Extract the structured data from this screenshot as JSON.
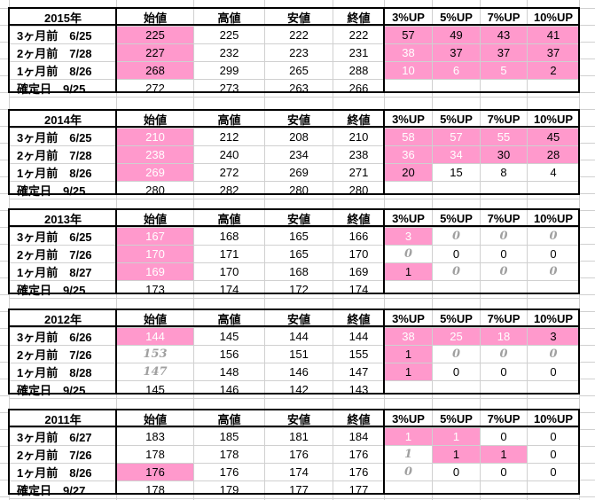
{
  "columns": [
    "始値",
    "高値",
    "安値",
    "終値",
    "3%UP",
    "5%UP",
    "7%UP",
    "10%UP"
  ],
  "colors": {
    "highlight": "#ff99cc",
    "border": "#000000",
    "grid": "#d0d0d0"
  },
  "blocks": [
    {
      "year": "2015年",
      "rows": [
        {
          "label": "3ヶ月前　6/25",
          "open": "225",
          "high": "225",
          "low": "222",
          "close": "222",
          "up3": "57",
          "up5": "49",
          "up7": "43",
          "up10": "41"
        },
        {
          "label": "2ヶ月前　7/28",
          "open": "227",
          "high": "232",
          "low": "223",
          "close": "231",
          "up3": "38",
          "up5": "37",
          "up7": "37",
          "up10": "37"
        },
        {
          "label": "1ヶ月前　8/26",
          "open": "268",
          "high": "299",
          "low": "265",
          "close": "288",
          "up3": "10",
          "up5": "6",
          "up7": "5",
          "up10": "2"
        },
        {
          "label": "確定日　9/25",
          "open": "272",
          "high": "273",
          "low": "263",
          "close": "266",
          "up3": "",
          "up5": "",
          "up7": "",
          "up10": ""
        }
      ]
    },
    {
      "year": "2014年",
      "rows": [
        {
          "label": "3ヶ月前　6/25",
          "open": "210",
          "high": "212",
          "low": "208",
          "close": "210",
          "up3": "58",
          "up5": "57",
          "up7": "55",
          "up10": "45"
        },
        {
          "label": "2ヶ月前　7/28",
          "open": "238",
          "high": "240",
          "low": "234",
          "close": "238",
          "up3": "36",
          "up5": "34",
          "up7": "30",
          "up10": "28"
        },
        {
          "label": "1ヶ月前　8/26",
          "open": "269",
          "high": "272",
          "low": "269",
          "close": "271",
          "up3": "20",
          "up5": "15",
          "up7": "8",
          "up10": "4"
        },
        {
          "label": "確定日　9/25",
          "open": "280",
          "high": "282",
          "low": "280",
          "close": "280",
          "up3": "",
          "up5": "",
          "up7": "",
          "up10": ""
        }
      ]
    },
    {
      "year": "2013年",
      "rows": [
        {
          "label": "3ヶ月前　6/25",
          "open": "167",
          "high": "168",
          "low": "165",
          "close": "166",
          "up3": "3",
          "up5": "0",
          "up7": "0",
          "up10": "0"
        },
        {
          "label": "2ヶ月前　7/26",
          "open": "170",
          "high": "171",
          "low": "165",
          "close": "170",
          "up3": "0",
          "up5": "0",
          "up7": "0",
          "up10": "0"
        },
        {
          "label": "1ヶ月前　8/27",
          "open": "169",
          "high": "170",
          "low": "168",
          "close": "169",
          "up3": "1",
          "up5": "0",
          "up7": "0",
          "up10": "0"
        },
        {
          "label": "確定日　9/25",
          "open": "173",
          "high": "174",
          "low": "172",
          "close": "174",
          "up3": "",
          "up5": "",
          "up7": "",
          "up10": ""
        }
      ]
    },
    {
      "year": "2012年",
      "rows": [
        {
          "label": "3ヶ月前　6/26",
          "open": "144",
          "high": "145",
          "low": "144",
          "close": "144",
          "up3": "38",
          "up5": "25",
          "up7": "18",
          "up10": "3"
        },
        {
          "label": "2ヶ月前　7/26",
          "open": "153",
          "high": "156",
          "low": "151",
          "close": "155",
          "up3": "1",
          "up5": "0",
          "up7": "0",
          "up10": "0"
        },
        {
          "label": "1ヶ月前　8/28",
          "open": "147",
          "high": "148",
          "low": "146",
          "close": "147",
          "up3": "1",
          "up5": "0",
          "up7": "0",
          "up10": "0"
        },
        {
          "label": "確定日　9/25",
          "open": "145",
          "high": "146",
          "low": "142",
          "close": "143",
          "up3": "",
          "up5": "",
          "up7": "",
          "up10": ""
        }
      ]
    },
    {
      "year": "2011年",
      "rows": [
        {
          "label": "3ヶ月前　6/27",
          "open": "183",
          "high": "185",
          "low": "181",
          "close": "184",
          "up3": "1",
          "up5": "1",
          "up7": "0",
          "up10": "0"
        },
        {
          "label": "2ヶ月前　7/26",
          "open": "178",
          "high": "178",
          "low": "176",
          "close": "176",
          "up3": "1",
          "up5": "1",
          "up7": "1",
          "up10": "0"
        },
        {
          "label": "1ヶ月前　8/26",
          "open": "176",
          "high": "176",
          "low": "174",
          "close": "176",
          "up3": "0",
          "up5": "0",
          "up7": "0",
          "up10": "0"
        },
        {
          "label": "確定日　9/27",
          "open": "178",
          "high": "179",
          "low": "177",
          "close": "177",
          "up3": "",
          "up5": "",
          "up7": "",
          "up10": ""
        }
      ]
    }
  ]
}
